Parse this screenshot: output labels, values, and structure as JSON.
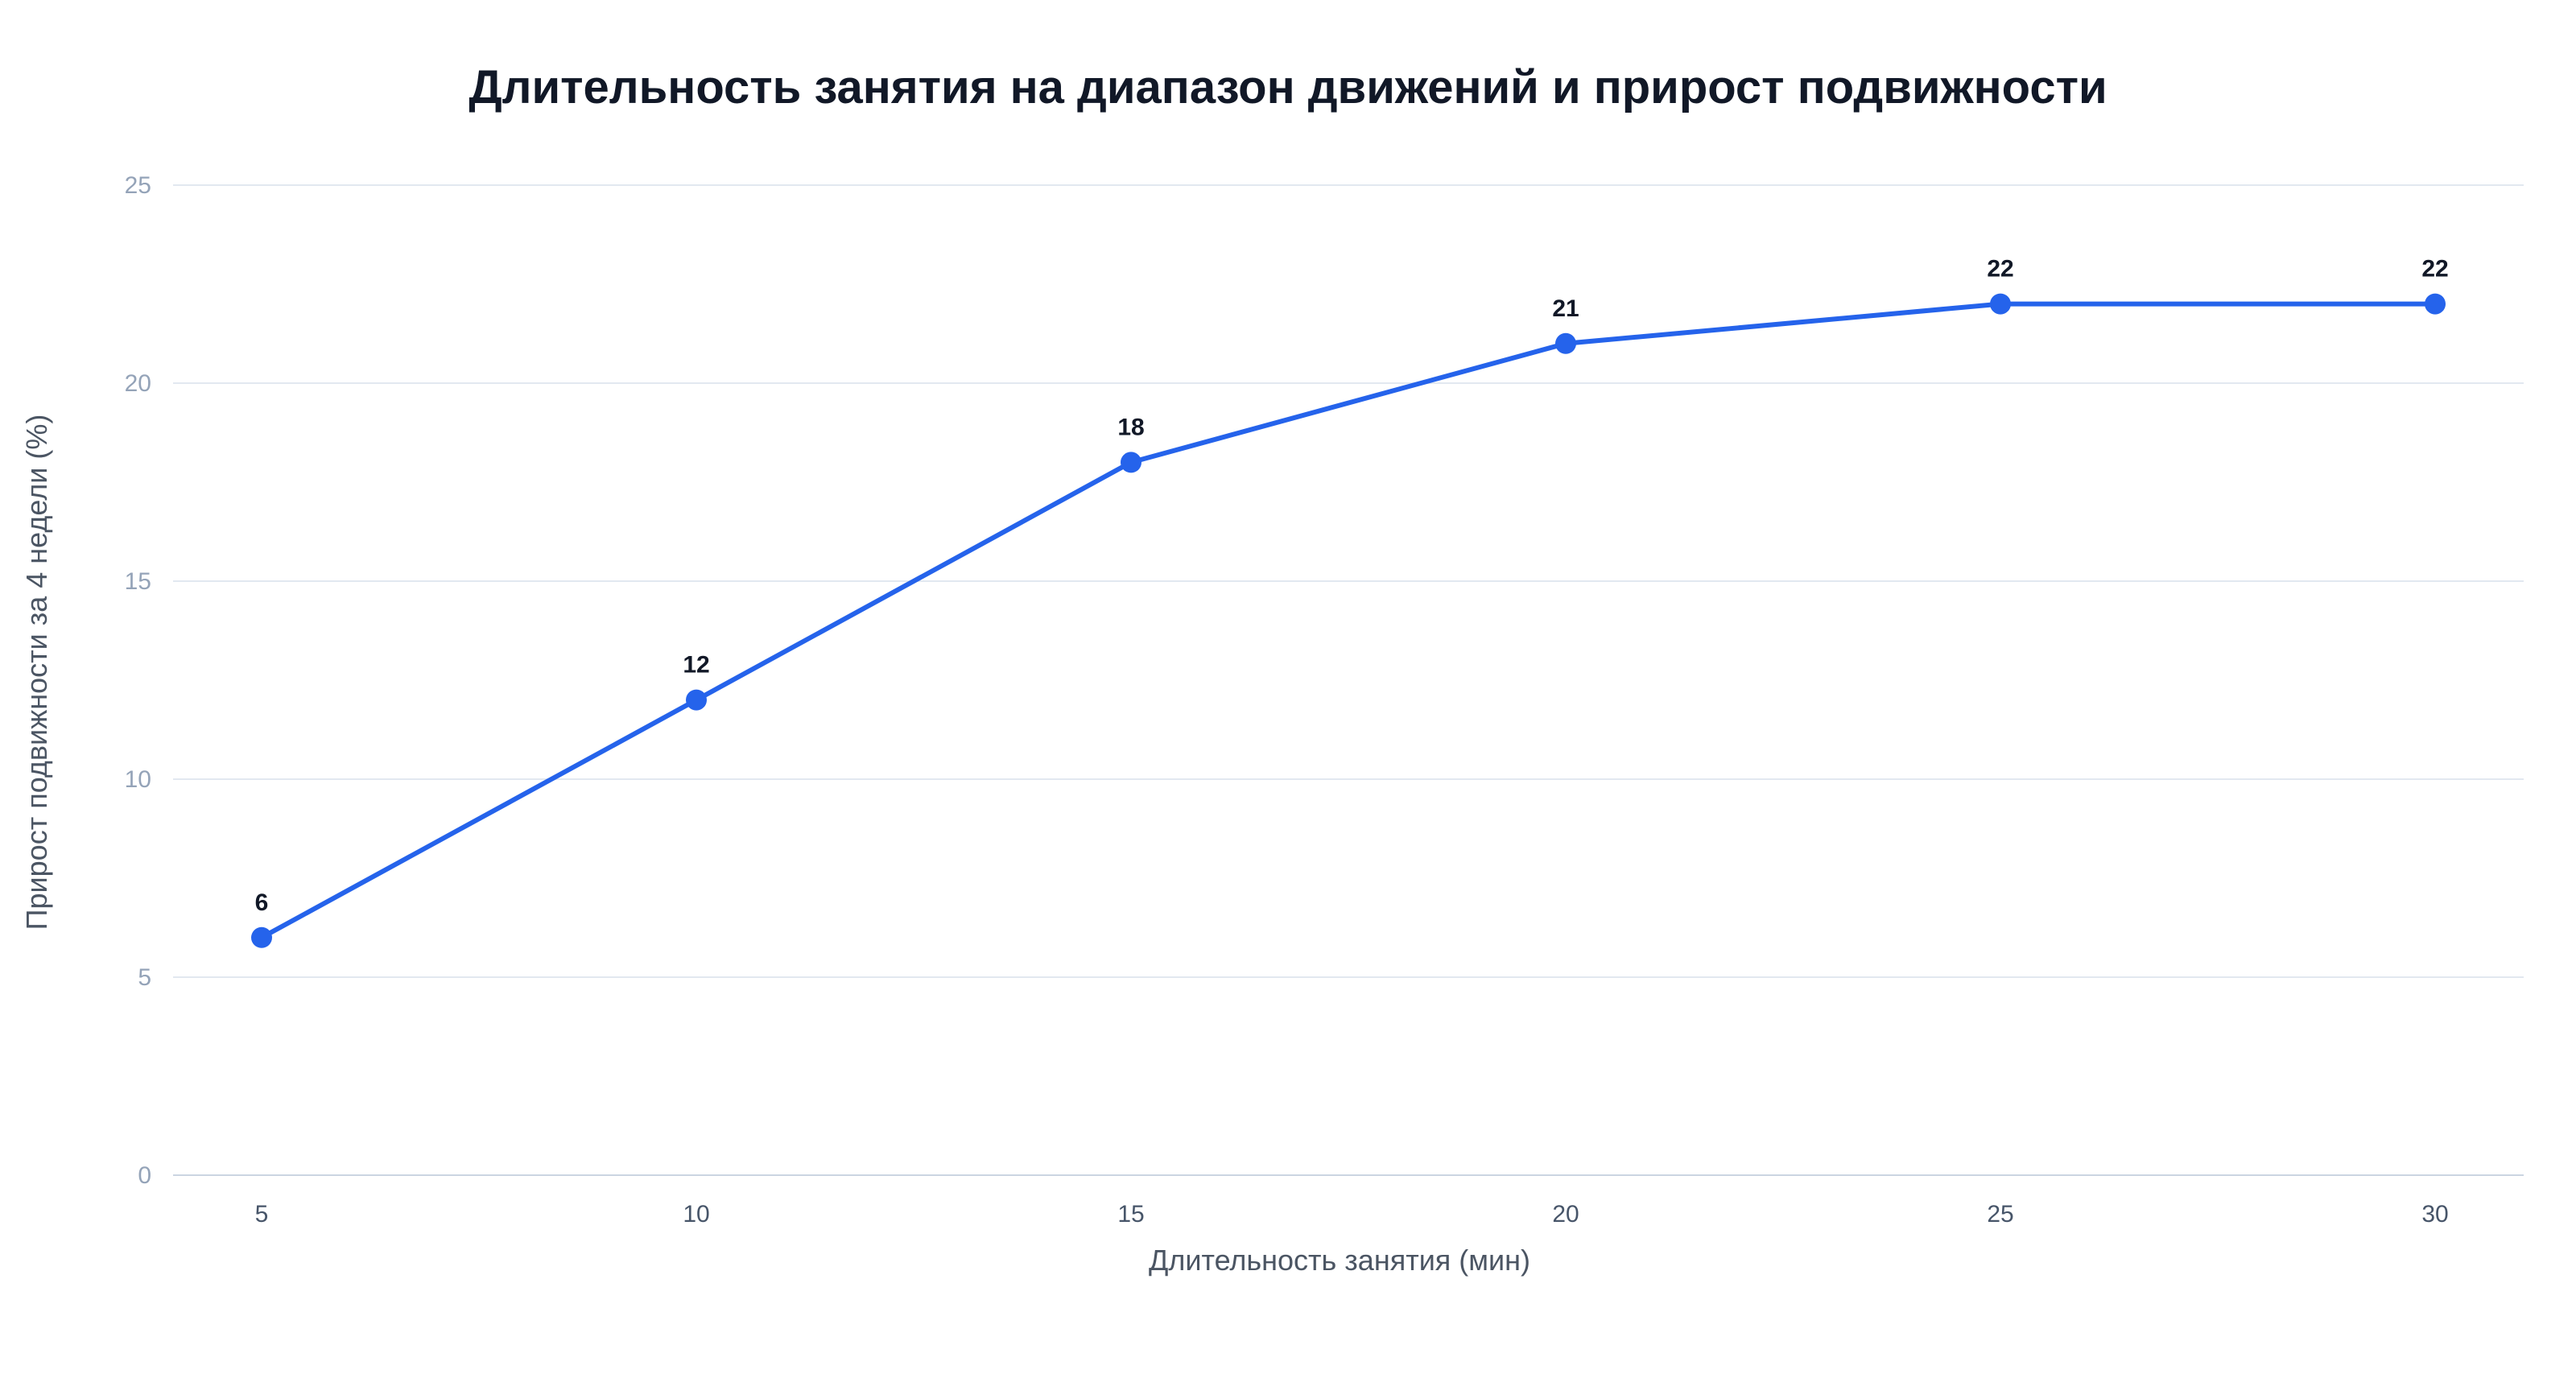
{
  "chart_data": {
    "type": "line",
    "title": "Длительность занятия на диапазон движений и прирост подвижности",
    "xlabel": "Длительность занятия (мин)",
    "ylabel": "Прирост подвижности за 4 недели (%)",
    "x": [
      5,
      10,
      15,
      20,
      25,
      30
    ],
    "x_tick_labels": [
      "5",
      "10",
      "15",
      "20",
      "25",
      "30"
    ],
    "y_ticks": [
      0,
      5,
      10,
      15,
      20,
      25
    ],
    "y_tick_labels": [
      "0",
      "5",
      "10",
      "15",
      "20",
      "25"
    ],
    "ylim": [
      0,
      25
    ],
    "xlim": [
      5,
      30
    ],
    "grid": true,
    "legend": "none",
    "series": [
      {
        "values": [
          6,
          12,
          18,
          21,
          22,
          22
        ],
        "data_labels": [
          "6",
          "12",
          "18",
          "21",
          "22",
          "22"
        ],
        "color": "#2563eb"
      }
    ]
  }
}
